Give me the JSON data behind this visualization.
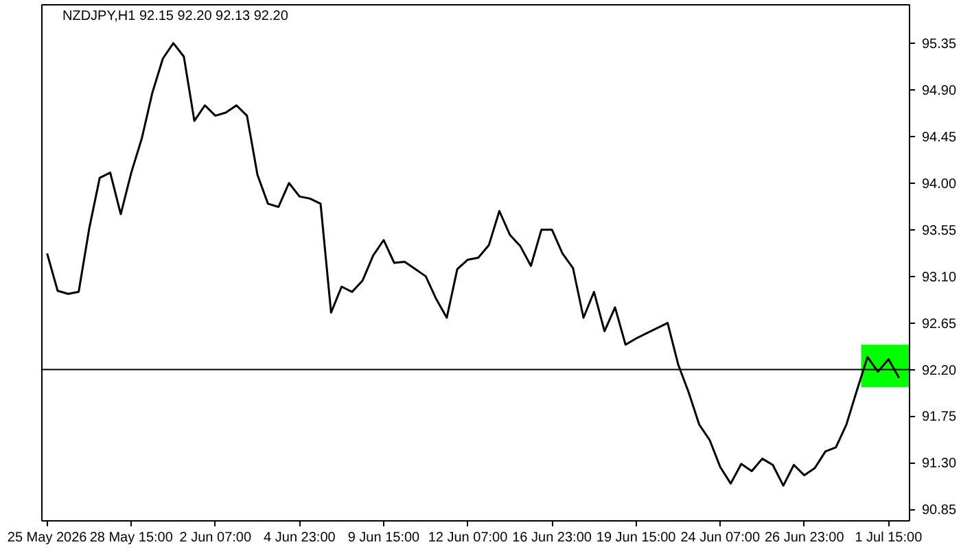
{
  "chart_data": {
    "type": "line",
    "title": "NZDJPY,H1  92.15 92.20 92.13 92.20",
    "categories": [
      "25 May 2026",
      null,
      null,
      null,
      null,
      null,
      null,
      null,
      "28 May 15:00",
      null,
      null,
      null,
      null,
      null,
      null,
      null,
      "2 Jun 07:00",
      null,
      null,
      null,
      null,
      null,
      null,
      null,
      "4 Jun 23:00",
      null,
      null,
      null,
      null,
      null,
      null,
      null,
      "9 Jun 15:00",
      null,
      null,
      null,
      null,
      null,
      null,
      null,
      "12 Jun 07:00",
      null,
      null,
      null,
      null,
      null,
      null,
      null,
      "16 Jun 23:00",
      null,
      null,
      null,
      null,
      null,
      null,
      null,
      "19 Jun 15:00",
      null,
      null,
      null,
      null,
      null,
      null,
      null,
      "24 Jun 07:00",
      null,
      null,
      null,
      null,
      null,
      null,
      null,
      "26 Jun 23:00",
      null,
      null,
      null,
      null,
      null,
      null,
      null,
      "1 Jul 15:00",
      null
    ],
    "series": [
      {
        "color": "#000000",
        "values": [
          93.32,
          92.96,
          92.93,
          92.95,
          93.56,
          94.05,
          94.1,
          93.7,
          94.1,
          94.43,
          94.87,
          95.2,
          95.35,
          95.22,
          94.6,
          94.75,
          94.65,
          94.68,
          94.75,
          94.65,
          94.08,
          93.8,
          93.77,
          94.0,
          93.87,
          93.85,
          93.8,
          92.75,
          93.0,
          92.95,
          93.06,
          93.3,
          93.45,
          93.23,
          93.24,
          93.17,
          93.1,
          92.88,
          92.7,
          93.17,
          93.26,
          93.28,
          93.4,
          93.73,
          93.5,
          93.39,
          93.2,
          93.55,
          93.55,
          93.32,
          93.18,
          92.7,
          92.95,
          92.57,
          92.8,
          92.44,
          92.5,
          92.55,
          92.6,
          92.65,
          92.25,
          91.98,
          91.67,
          91.52,
          91.26,
          91.1,
          91.29,
          91.22,
          91.34,
          91.28,
          91.08,
          91.28,
          91.18,
          91.25,
          91.41,
          91.45,
          91.67,
          92.0,
          92.32,
          92.18,
          92.3,
          92.12
        ]
      }
    ],
    "ylim": [
      90.74,
      95.72
    ],
    "yticks": [
      {
        "value": 90.85,
        "label": "90.85"
      },
      {
        "value": 91.3,
        "label": "91.30"
      },
      {
        "value": 91.75,
        "label": "91.75"
      },
      {
        "value": 92.65,
        "label": "92.65"
      },
      {
        "value": 93.1,
        "label": "93.10"
      },
      {
        "value": 93.55,
        "label": "93.55"
      },
      {
        "value": 94.0,
        "label": "94.00"
      },
      {
        "value": 94.45,
        "label": "94.45"
      },
      {
        "value": 94.9,
        "label": "94.90"
      },
      {
        "value": 95.35,
        "label": "95.35"
      }
    ],
    "ref_lines": [
      {
        "axis": "y",
        "value": 92.2,
        "label": "92.20",
        "color": "#000000"
      }
    ],
    "bands": [
      {
        "axis": "y",
        "from": 92.03,
        "to": 92.44,
        "color": "#00ff00"
      }
    ],
    "grid": false
  }
}
